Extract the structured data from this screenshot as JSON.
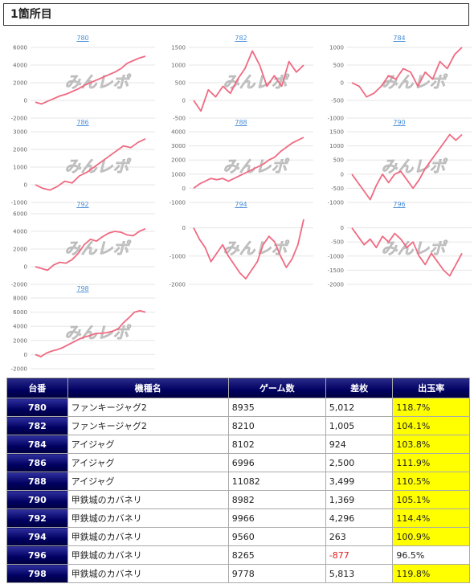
{
  "page": {
    "title": "1箇所目"
  },
  "colors": {
    "line": "#f06a82",
    "grid": "#e6e6e6",
    "header": "#000060",
    "highlight": "#ffff00",
    "negative": "#e02020",
    "link": "#4a8fd8"
  },
  "watermark": "みんレポ",
  "table": {
    "headers": [
      "台番",
      "機種名",
      "ゲーム数",
      "差枚",
      "出玉率"
    ],
    "rows": [
      {
        "num": "780",
        "name": "ファンキージャグ2",
        "games": "8935",
        "diff": "5,012",
        "rate": "118.7%",
        "hi": true,
        "neg": false
      },
      {
        "num": "782",
        "name": "ファンキージャグ2",
        "games": "8210",
        "diff": "1,005",
        "rate": "104.1%",
        "hi": true,
        "neg": false
      },
      {
        "num": "784",
        "name": "アイジャグ",
        "games": "8102",
        "diff": "924",
        "rate": "103.8%",
        "hi": true,
        "neg": false
      },
      {
        "num": "786",
        "name": "アイジャグ",
        "games": "6996",
        "diff": "2,500",
        "rate": "111.9%",
        "hi": true,
        "neg": false
      },
      {
        "num": "788",
        "name": "アイジャグ",
        "games": "11082",
        "diff": "3,499",
        "rate": "110.5%",
        "hi": true,
        "neg": false
      },
      {
        "num": "790",
        "name": "甲鉄城のカバネリ",
        "games": "8982",
        "diff": "1,369",
        "rate": "105.1%",
        "hi": true,
        "neg": false
      },
      {
        "num": "792",
        "name": "甲鉄城のカバネリ",
        "games": "9966",
        "diff": "4,296",
        "rate": "114.4%",
        "hi": true,
        "neg": false
      },
      {
        "num": "794",
        "name": "甲鉄城のカバネリ",
        "games": "9560",
        "diff": "263",
        "rate": "100.9%",
        "hi": true,
        "neg": false
      },
      {
        "num": "796",
        "name": "甲鉄城のカバネリ",
        "games": "8265",
        "diff": "-877",
        "rate": "96.5%",
        "hi": false,
        "neg": true
      },
      {
        "num": "798",
        "name": "甲鉄城のカバネリ",
        "games": "9778",
        "diff": "5,813",
        "rate": "119.8%",
        "hi": true,
        "neg": false
      }
    ]
  },
  "chart_data": [
    {
      "type": "line",
      "title": "780",
      "yticks": [
        6000,
        4000,
        2000,
        0,
        -2000
      ],
      "ylim": [
        -2000,
        6000
      ],
      "values": [
        -200,
        -400,
        -100,
        200,
        500,
        700,
        1000,
        1300,
        1700,
        2000,
        2300,
        2600,
        2900,
        3200,
        3600,
        4200,
        4500,
        4800,
        5000
      ]
    },
    {
      "type": "line",
      "title": "782",
      "yticks": [
        1500,
        1000,
        500,
        0,
        -500
      ],
      "ylim": [
        -500,
        1500
      ],
      "values": [
        0,
        -300,
        300,
        100,
        400,
        200,
        600,
        900,
        1400,
        1000,
        400,
        700,
        400,
        1100,
        800,
        1000
      ]
    },
    {
      "type": "line",
      "title": "784",
      "yticks": [
        1000,
        500,
        0,
        -500,
        -1000
      ],
      "ylim": [
        -1000,
        1000
      ],
      "values": [
        0,
        -100,
        -400,
        -300,
        -100,
        200,
        100,
        400,
        300,
        -100,
        300,
        100,
        600,
        400,
        800,
        1000
      ]
    },
    {
      "type": "line",
      "title": "786",
      "yticks": [
        3000,
        2000,
        1000,
        0,
        -1000
      ],
      "ylim": [
        -1000,
        3000
      ],
      "values": [
        0,
        -200,
        -300,
        -100,
        200,
        100,
        500,
        700,
        1000,
        1300,
        1600,
        1900,
        2200,
        2100,
        2400,
        2600
      ]
    },
    {
      "type": "line",
      "title": "788",
      "yticks": [
        4000,
        3000,
        2000,
        1000,
        0,
        -1000
      ],
      "ylim": [
        -1000,
        4000
      ],
      "values": [
        0,
        300,
        500,
        700,
        600,
        700,
        500,
        700,
        900,
        1100,
        1300,
        1500,
        1700,
        2000,
        2200,
        2600,
        2900,
        3200,
        3400,
        3600
      ]
    },
    {
      "type": "line",
      "title": "790",
      "yticks": [
        1500,
        1000,
        500,
        0,
        -500,
        -1000
      ],
      "ylim": [
        -1000,
        1500
      ],
      "values": [
        0,
        -300,
        -600,
        -900,
        -400,
        0,
        -300,
        0,
        100,
        -200,
        -500,
        -200,
        200,
        500,
        800,
        1100,
        1400,
        1200,
        1400
      ]
    },
    {
      "type": "line",
      "title": "792",
      "yticks": [
        6000,
        4000,
        2000,
        0,
        -2000
      ],
      "ylim": [
        -2000,
        6000
      ],
      "values": [
        0,
        -200,
        -400,
        200,
        500,
        400,
        800,
        1500,
        2500,
        3100,
        2900,
        3400,
        3800,
        4000,
        3900,
        3600,
        3500,
        4000,
        4300
      ]
    },
    {
      "type": "line",
      "title": "794",
      "yticks": [
        0,
        -1000,
        -2000
      ],
      "ylim": [
        -2000,
        500
      ],
      "values": [
        0,
        -400,
        -700,
        -1200,
        -900,
        -600,
        -1000,
        -1300,
        -1600,
        -1800,
        -1500,
        -1200,
        -600,
        -300,
        -500,
        -1000,
        -1400,
        -1100,
        -600,
        300
      ]
    },
    {
      "type": "line",
      "title": "796",
      "yticks": [
        0,
        -500,
        -1000,
        -1500,
        -2000
      ],
      "ylim": [
        -2000,
        500
      ],
      "values": [
        0,
        -300,
        -600,
        -400,
        -700,
        -300,
        -500,
        -200,
        -400,
        -700,
        -500,
        -1000,
        -1300,
        -900,
        -1200,
        -1500,
        -1700,
        -1300,
        -900
      ]
    },
    {
      "type": "line",
      "title": "798",
      "yticks": [
        8000,
        6000,
        4000,
        2000,
        0,
        -2000
      ],
      "ylim": [
        -2000,
        8000
      ],
      "values": [
        0,
        -300,
        200,
        500,
        700,
        1000,
        1400,
        1800,
        2200,
        2500,
        2700,
        3000,
        3000,
        3100,
        3300,
        3600,
        4500,
        5200,
        6000,
        6200,
        6000
      ]
    }
  ]
}
